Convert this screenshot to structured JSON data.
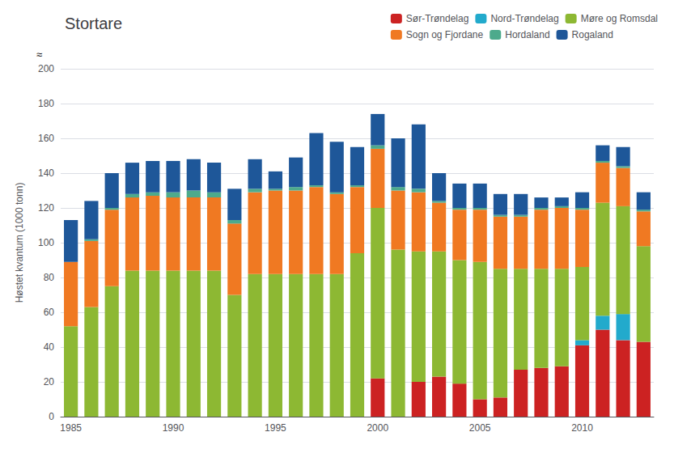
{
  "chart_data": {
    "type": "bar",
    "title": "Stortare",
    "ylabel": "Høstet kvantum (1000 tonn)",
    "annotations": [
      "≈"
    ],
    "categories": [
      "1985",
      null,
      null,
      null,
      null,
      "1990",
      null,
      null,
      null,
      null,
      "1995",
      null,
      null,
      null,
      null,
      "2000",
      null,
      null,
      null,
      null,
      "2005",
      null,
      null,
      null,
      null,
      "2010",
      null,
      null,
      null
    ],
    "series": [
      {
        "name": "Sør-Trøndelag",
        "color": "#cc2222",
        "values": [
          0,
          0,
          0,
          0,
          0,
          0,
          0,
          0,
          0,
          0,
          0,
          0,
          0,
          0,
          0,
          22,
          0,
          20,
          23,
          19,
          10,
          11,
          27,
          28,
          29,
          41,
          50,
          44,
          43
        ]
      },
      {
        "name": "Nord-Trøndelag",
        "color": "#22aacc",
        "values": [
          0,
          0,
          0,
          0,
          0,
          0,
          0,
          0,
          0,
          0,
          0,
          0,
          0,
          0,
          0,
          0,
          0,
          0,
          0,
          0,
          0,
          0,
          0,
          0,
          0,
          3,
          8,
          15,
          0
        ]
      },
      {
        "name": "Møre og Romsdal",
        "color": "#8db833",
        "values": [
          52,
          63,
          75,
          84,
          84,
          84,
          84,
          84,
          70,
          82,
          82,
          82,
          82,
          82,
          94,
          98,
          96,
          75,
          72,
          71,
          79,
          74,
          58,
          57,
          56,
          42,
          65,
          62,
          55
        ]
      },
      {
        "name": "Sogn og Fjordane",
        "color": "#f07922",
        "values": [
          37,
          38,
          44,
          42,
          43,
          42,
          42,
          42,
          41,
          47,
          48,
          48,
          50,
          46,
          38,
          34,
          34,
          34,
          28,
          29,
          30,
          30,
          30,
          34,
          35,
          33,
          23,
          22,
          20
        ]
      },
      {
        "name": "Hordaland",
        "color": "#4daa8c",
        "values": [
          0,
          1,
          1,
          2,
          2,
          3,
          4,
          3,
          2,
          2,
          1,
          2,
          1,
          1,
          1,
          2,
          2,
          2,
          1,
          1,
          1,
          1,
          1,
          1,
          1,
          1,
          1,
          1,
          1
        ]
      },
      {
        "name": "Rogaland",
        "color": "#1e5799",
        "values": [
          24,
          22,
          20,
          18,
          18,
          18,
          18,
          17,
          18,
          17,
          10,
          17,
          30,
          29,
          22,
          18,
          28,
          37,
          16,
          14,
          14,
          12,
          12,
          6,
          5,
          9,
          9,
          11,
          10
        ]
      }
    ],
    "stacked": true,
    "ylim": [
      0,
      200
    ],
    "yticks": [
      0,
      20,
      40,
      60,
      80,
      100,
      120,
      140,
      160,
      180,
      200
    ],
    "grid": true,
    "legend": "upper right"
  }
}
